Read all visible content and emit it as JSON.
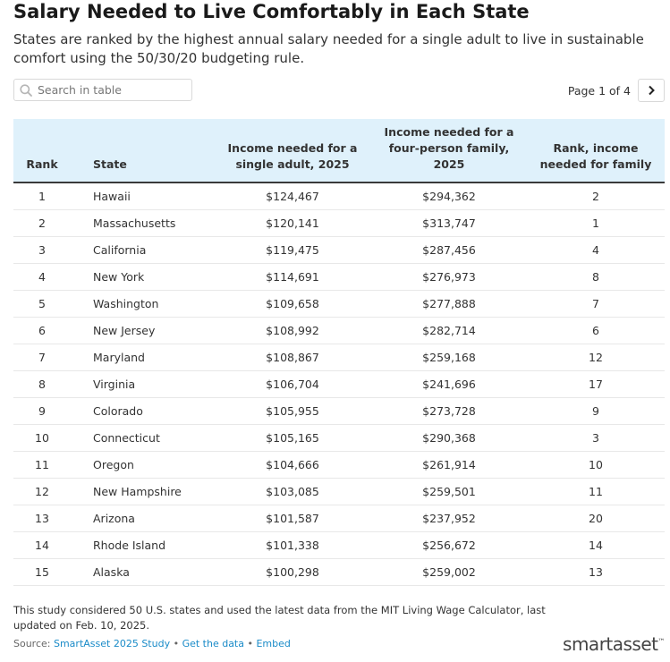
{
  "title": "Salary Needed to Live Comfortably in Each State",
  "subtitle": "States are ranked by the highest annual salary needed for a single adult to live in sustainable comfort using the 50/30/20 budgeting rule.",
  "search": {
    "placeholder": "Search in table"
  },
  "pager": {
    "label": "Page 1 of 4"
  },
  "chart_data": {
    "type": "table",
    "columns": [
      "Rank",
      "State",
      "Income needed for a single adult, 2025",
      "Income needed for a four-person family, 2025",
      "Rank, income needed for family"
    ],
    "rows": [
      [
        "1",
        "Hawaii",
        "$124,467",
        "$294,362",
        "2"
      ],
      [
        "2",
        "Massachusetts",
        "$120,141",
        "$313,747",
        "1"
      ],
      [
        "3",
        "California",
        "$119,475",
        "$287,456",
        "4"
      ],
      [
        "4",
        "New York",
        "$114,691",
        "$276,973",
        "8"
      ],
      [
        "5",
        "Washington",
        "$109,658",
        "$277,888",
        "7"
      ],
      [
        "6",
        "New Jersey",
        "$108,992",
        "$282,714",
        "6"
      ],
      [
        "7",
        "Maryland",
        "$108,867",
        "$259,168",
        "12"
      ],
      [
        "8",
        "Virginia",
        "$106,704",
        "$241,696",
        "17"
      ],
      [
        "9",
        "Colorado",
        "$105,955",
        "$273,728",
        "9"
      ],
      [
        "10",
        "Connecticut",
        "$105,165",
        "$290,368",
        "3"
      ],
      [
        "11",
        "Oregon",
        "$104,666",
        "$261,914",
        "10"
      ],
      [
        "12",
        "New Hampshire",
        "$103,085",
        "$259,501",
        "11"
      ],
      [
        "13",
        "Arizona",
        "$101,587",
        "$237,952",
        "20"
      ],
      [
        "14",
        "Rhode Island",
        "$101,338",
        "$256,672",
        "14"
      ],
      [
        "15",
        "Alaska",
        "$100,298",
        "$259,002",
        "13"
      ]
    ]
  },
  "footnote": "This study considered 50 U.S. states and used the latest data from the MIT Living Wage Calculator, last updated on Feb. 10, 2025.",
  "source": {
    "prefix": "Source: ",
    "study_link": "SmartAsset 2025 Study",
    "sep1": " • ",
    "data_link": "Get the data",
    "sep2": " • ",
    "embed_link": "Embed"
  },
  "brand": {
    "name": "smartasset",
    "mark": "™"
  }
}
